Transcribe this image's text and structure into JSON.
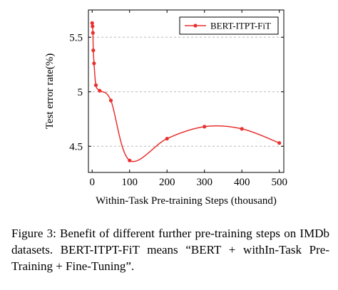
{
  "chart_data": {
    "type": "line",
    "xlabel": "Within-Task Pre-training Steps (thousand)",
    "ylabel": "Test error rate(%)",
    "xlim": [
      -10,
      512
    ],
    "ylim": [
      4.26,
      5.75
    ],
    "x_ticks": [
      0,
      100,
      200,
      300,
      400,
      500
    ],
    "y_ticks": [
      4.5,
      5,
      5.5
    ],
    "grid": "horizontal dashed at y ticks",
    "legend_position": "top-right",
    "series": [
      {
        "name": "BERT-ITPT-FiT",
        "color": "#e8322f",
        "x": [
          0,
          1,
          2,
          3,
          5,
          10,
          20,
          50,
          100,
          200,
          300,
          400,
          500
        ],
        "y": [
          5.63,
          5.6,
          5.54,
          5.38,
          5.26,
          5.06,
          5.01,
          4.92,
          4.37,
          4.57,
          4.68,
          4.66,
          4.53
        ]
      }
    ]
  },
  "caption": "Figure 3: Benefit of different further pre-training steps on IMDb datasets. BERT-ITPT-FiT means “BERT + withIn-Task Pre-Training + Fine-Tuning”."
}
